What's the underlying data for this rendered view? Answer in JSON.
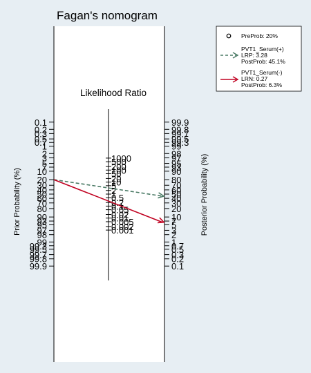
{
  "chart_data": {
    "type": "nomogram",
    "title": "Fagan's nomogram",
    "left_axis_label": "Prior Probability (%)",
    "right_axis_label": "Posterior Probability (%)",
    "center_axis_label": "Likelihood Ratio",
    "left_ticks": [
      "0.1",
      "0.2",
      "0.3",
      "0.5",
      "0.7",
      "1",
      "2",
      "3",
      "5",
      "7",
      "10",
      "20",
      "30",
      "40",
      "50",
      "60",
      "70",
      "80",
      "90",
      "93",
      "95",
      "97",
      "98",
      "99",
      "99.3",
      "99.5",
      "99.7",
      "99.8",
      "99.9"
    ],
    "right_ticks": [
      "99.9",
      "99.8",
      "99.7",
      "99.5",
      "99.3",
      "99",
      "98",
      "97",
      "95",
      "93",
      "90",
      "80",
      "70",
      "60",
      "50",
      "40",
      "30",
      "20",
      "10",
      "7",
      "5",
      "3",
      "2",
      "1",
      "0.7",
      "0.5",
      "0.3",
      "0.2",
      "0.1"
    ],
    "lr_ticks": [
      "1000",
      "500",
      "200",
      "100",
      "50",
      "20",
      "10",
      "5",
      "2",
      "1",
      "0.5",
      "0.2",
      "0.1",
      "0.05",
      "0.02",
      "0.01",
      "0.005",
      "0.002",
      "0.001"
    ],
    "series": [
      {
        "name": "PVT1_Serum(+)",
        "lr_label": "LRP: 3.28",
        "post_label": "PostProb: 45.1%",
        "prior": 20,
        "lr": 3.28,
        "post": 45.1,
        "color": "#4a7a65",
        "style": "dashed"
      },
      {
        "name": "PVT1_Serum(-)",
        "lr_label": "LRN: 0.27",
        "post_label": "PostProb: 6.3%",
        "prior": 20,
        "lr": 0.27,
        "post": 6.3,
        "color": "#c00020",
        "style": "solid"
      }
    ],
    "legend": {
      "position": "top-right",
      "preprob_label": "PreProb: 20%"
    }
  },
  "colors": {
    "background": "#e7eef3",
    "plot": "#ffffff"
  }
}
